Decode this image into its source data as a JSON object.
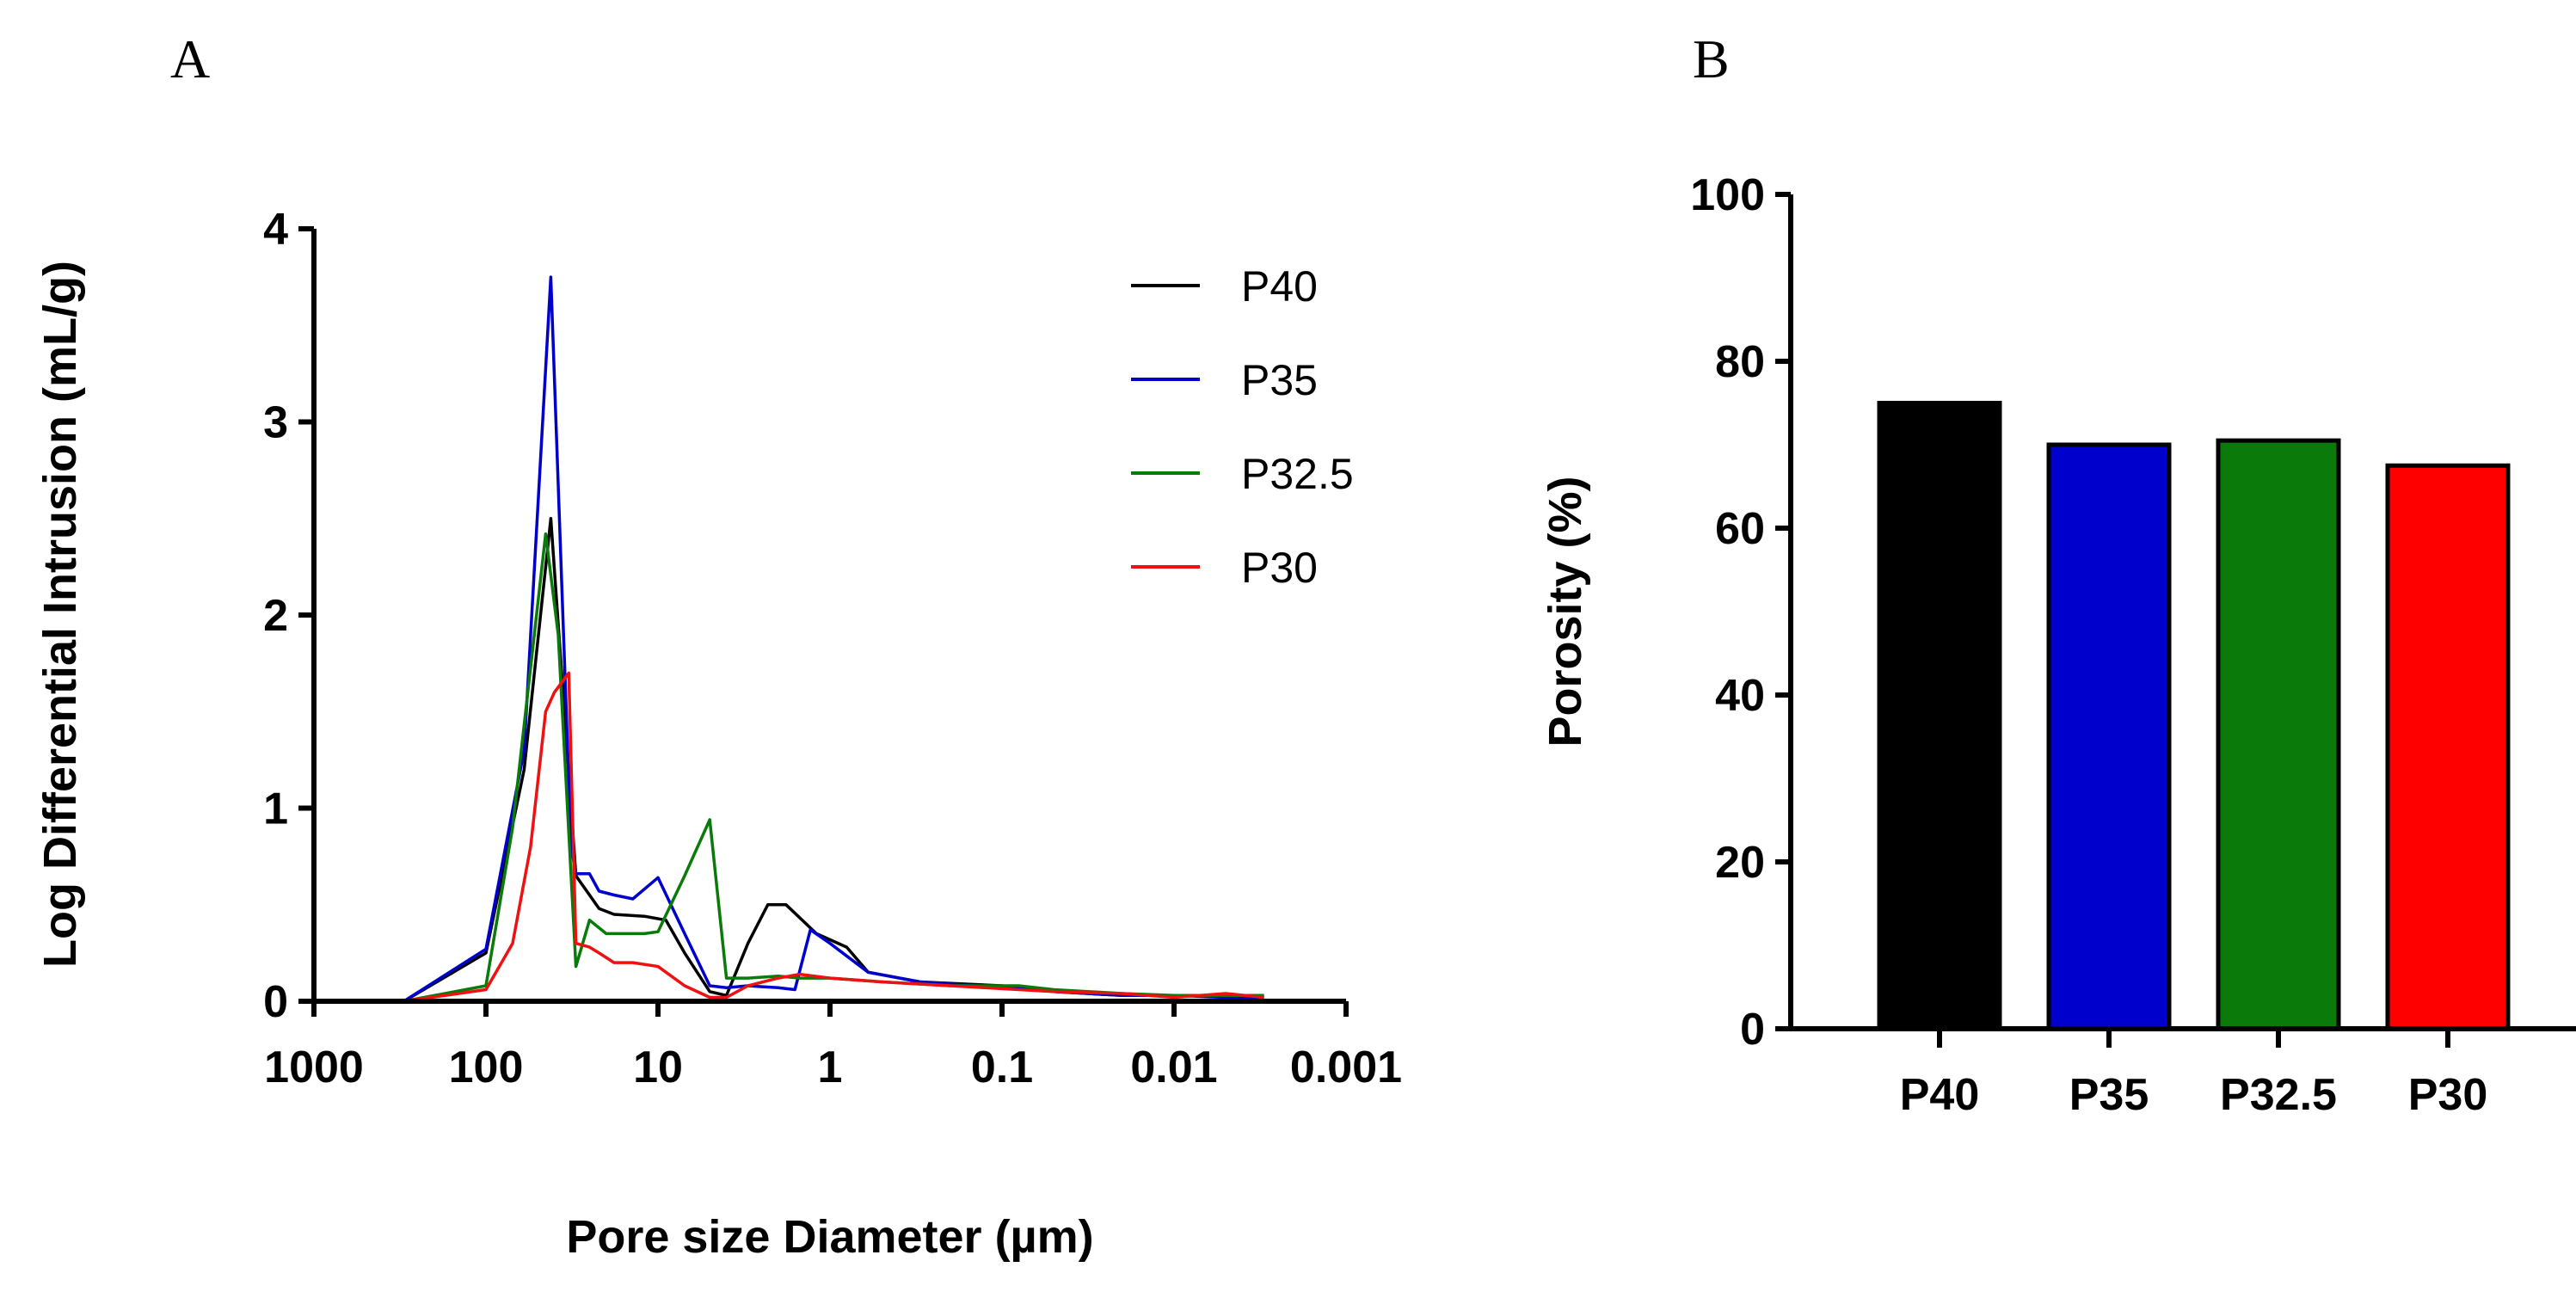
{
  "panels": {
    "a": "A",
    "b": "B"
  },
  "chart_data": [
    {
      "type": "line",
      "title": "",
      "xlabel": "Pore size Diameter (µm)",
      "ylabel": "Log Differential Intrusion (mL/g)",
      "x_scale": "log",
      "x_reversed": true,
      "xlim": [
        1000,
        0.001
      ],
      "ylim": [
        0,
        4
      ],
      "x_ticks": [
        1000,
        100,
        10,
        1,
        0.1,
        0.01,
        0.001
      ],
      "x_tick_labels": [
        "1000",
        "100",
        "10",
        "1",
        "0.1",
        "0.01",
        "0.001"
      ],
      "y_ticks": [
        0,
        1,
        2,
        3,
        4
      ],
      "y_tick_labels": [
        "0",
        "1",
        "2",
        "3",
        "4"
      ],
      "legend_position": "top-right",
      "series": [
        {
          "name": "P40",
          "color": "#000000",
          "points": [
            [
              300,
              0
            ],
            [
              100,
              0.25
            ],
            [
              60,
              1.2
            ],
            [
              42,
              2.5
            ],
            [
              30,
              0.65
            ],
            [
              25,
              0.55
            ],
            [
              22,
              0.48
            ],
            [
              18,
              0.45
            ],
            [
              12,
              0.44
            ],
            [
              9,
              0.42
            ],
            [
              7,
              0.25
            ],
            [
              5,
              0.05
            ],
            [
              4,
              0.03
            ],
            [
              3,
              0.3
            ],
            [
              2.3,
              0.5
            ],
            [
              1.8,
              0.5
            ],
            [
              1.2,
              0.35
            ],
            [
              0.8,
              0.28
            ],
            [
              0.6,
              0.15
            ],
            [
              0.3,
              0.1
            ],
            [
              0.1,
              0.08
            ],
            [
              0.05,
              0.05
            ],
            [
              0.02,
              0.03
            ],
            [
              0.01,
              0.03
            ],
            [
              0.005,
              0.03
            ],
            [
              0.003,
              0.02
            ]
          ]
        },
        {
          "name": "P35",
          "color": "#0000cc",
          "points": [
            [
              300,
              0
            ],
            [
              100,
              0.27
            ],
            [
              60,
              1.3
            ],
            [
              42,
              3.75
            ],
            [
              32,
              0.8
            ],
            [
              30,
              0.66
            ],
            [
              25,
              0.66
            ],
            [
              22,
              0.57
            ],
            [
              18,
              0.55
            ],
            [
              14,
              0.53
            ],
            [
              10,
              0.64
            ],
            [
              7,
              0.35
            ],
            [
              5,
              0.08
            ],
            [
              4,
              0.07
            ],
            [
              3,
              0.08
            ],
            [
              2,
              0.07
            ],
            [
              1.6,
              0.06
            ],
            [
              1.3,
              0.37
            ],
            [
              1,
              0.3
            ],
            [
              0.6,
              0.15
            ],
            [
              0.3,
              0.1
            ],
            [
              0.1,
              0.07
            ],
            [
              0.05,
              0.05
            ],
            [
              0.02,
              0.03
            ],
            [
              0.01,
              0.03
            ],
            [
              0.005,
              0.02
            ],
            [
              0.003,
              0.02
            ]
          ]
        },
        {
          "name": "P32.5",
          "color": "#0a7a0a",
          "points": [
            [
              300,
              0
            ],
            [
              100,
              0.08
            ],
            [
              70,
              0.9
            ],
            [
              45,
              2.42
            ],
            [
              38,
              1.9
            ],
            [
              30,
              0.18
            ],
            [
              25,
              0.42
            ],
            [
              20,
              0.35
            ],
            [
              15,
              0.35
            ],
            [
              12,
              0.35
            ],
            [
              10,
              0.36
            ],
            [
              7,
              0.65
            ],
            [
              5,
              0.94
            ],
            [
              4,
              0.12
            ],
            [
              3,
              0.12
            ],
            [
              2,
              0.13
            ],
            [
              1.5,
              0.12
            ],
            [
              1,
              0.12
            ],
            [
              0.5,
              0.1
            ],
            [
              0.2,
              0.08
            ],
            [
              0.08,
              0.08
            ],
            [
              0.05,
              0.06
            ],
            [
              0.02,
              0.04
            ],
            [
              0.01,
              0.03
            ],
            [
              0.005,
              0.03
            ],
            [
              0.003,
              0.03
            ]
          ]
        },
        {
          "name": "P30",
          "color": "#ee1111",
          "points": [
            [
              300,
              0
            ],
            [
              100,
              0.06
            ],
            [
              70,
              0.3
            ],
            [
              55,
              0.8
            ],
            [
              45,
              1.5
            ],
            [
              40,
              1.6
            ],
            [
              33,
              1.7
            ],
            [
              30,
              0.3
            ],
            [
              25,
              0.28
            ],
            [
              22,
              0.25
            ],
            [
              18,
              0.2
            ],
            [
              14,
              0.2
            ],
            [
              10,
              0.18
            ],
            [
              7,
              0.08
            ],
            [
              5,
              0.02
            ],
            [
              4,
              0.02
            ],
            [
              3,
              0.08
            ],
            [
              2,
              0.12
            ],
            [
              1.5,
              0.14
            ],
            [
              1,
              0.12
            ],
            [
              0.5,
              0.1
            ],
            [
              0.2,
              0.08
            ],
            [
              0.08,
              0.06
            ],
            [
              0.05,
              0.05
            ],
            [
              0.02,
              0.04
            ],
            [
              0.01,
              0.02
            ],
            [
              0.005,
              0.04
            ],
            [
              0.003,
              0.02
            ]
          ]
        }
      ]
    },
    {
      "type": "bar",
      "title": "",
      "xlabel": "",
      "ylabel": "Porosity (%)",
      "ylim": [
        0,
        100
      ],
      "y_ticks": [
        0,
        20,
        40,
        60,
        80,
        100
      ],
      "y_tick_labels": [
        "0",
        "20",
        "40",
        "60",
        "80",
        "100"
      ],
      "categories": [
        "P40",
        "P35",
        "P32.5",
        "P30"
      ],
      "values": [
        75,
        70,
        70.5,
        67.5
      ],
      "colors": [
        "#000000",
        "#0000cc",
        "#0a7a0a",
        "#ff0000"
      ]
    }
  ]
}
